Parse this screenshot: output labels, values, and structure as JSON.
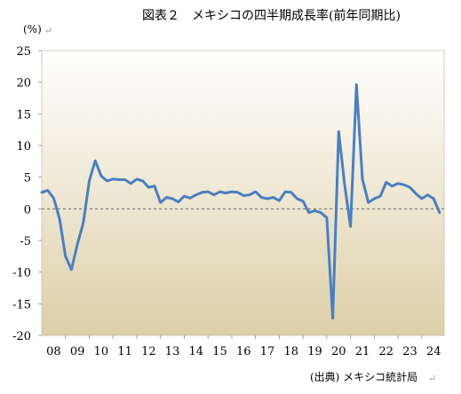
{
  "chart_data": {
    "type": "line",
    "title": "図表２　メキシコの四半期成長率(前年同期比)",
    "unit_label": "(%)",
    "source": "(出典) メキシコ統計局",
    "return_mark": "↵",
    "ylim": [
      -20,
      25
    ],
    "y_ticks": [
      25,
      20,
      15,
      10,
      5,
      0,
      -5,
      -10,
      -15,
      -20
    ],
    "x_ticks": [
      "08",
      "09",
      "10",
      "11",
      "12",
      "13",
      "14",
      "15",
      "16",
      "17",
      "18",
      "19",
      "20",
      "21",
      "22",
      "23",
      "24"
    ],
    "xlim": [
      2008,
      2024.94
    ],
    "line_color": "#4a7fc1",
    "background_gradient": [
      "#ffffff",
      "#ddd0a8"
    ],
    "series": [
      {
        "x": [
          2008.0,
          2008.25,
          2008.5,
          2008.75,
          2009.0,
          2009.25,
          2009.5,
          2009.75,
          2010.0,
          2010.25,
          2010.5,
          2010.75,
          2011.0,
          2011.25,
          2011.5,
          2011.75,
          2012.0,
          2012.25,
          2012.5,
          2012.75,
          2013.0,
          2013.25,
          2013.5,
          2013.75,
          2014.0,
          2014.25,
          2014.5,
          2014.75,
          2015.0,
          2015.25,
          2015.5,
          2015.75,
          2016.0,
          2016.25,
          2016.5,
          2016.75,
          2017.0,
          2017.25,
          2017.5,
          2017.75,
          2018.0,
          2018.25,
          2018.5,
          2018.75,
          2019.0,
          2019.25,
          2019.5,
          2019.75,
          2020.0,
          2020.25,
          2020.5,
          2020.75,
          2021.0,
          2021.25,
          2021.5,
          2021.75,
          2022.0,
          2022.25,
          2022.5,
          2022.75,
          2023.0,
          2023.25,
          2023.5,
          2023.75,
          2024.0,
          2024.25,
          2024.5,
          2024.75
        ],
        "values": [
          2.6,
          2.9,
          1.7,
          -1.6,
          -7.5,
          -9.6,
          -5.6,
          -2.2,
          4.4,
          7.6,
          5.2,
          4.4,
          4.7,
          4.6,
          4.6,
          4.0,
          4.7,
          4.4,
          3.4,
          3.6,
          1.0,
          1.8,
          1.6,
          1.1,
          2.0,
          1.7,
          2.2,
          2.6,
          2.7,
          2.2,
          2.7,
          2.5,
          2.7,
          2.6,
          2.1,
          2.2,
          2.7,
          1.8,
          1.6,
          1.8,
          1.3,
          2.7,
          2.6,
          1.6,
          1.2,
          -0.6,
          -0.3,
          -0.6,
          -1.4,
          -17.3,
          12.2,
          3.8,
          -2.8,
          19.6,
          4.7,
          1.0,
          1.6,
          2.0,
          4.2,
          3.6,
          4.0,
          3.8,
          3.4,
          2.4,
          1.6,
          2.2,
          1.6,
          -0.6
        ]
      }
    ]
  }
}
